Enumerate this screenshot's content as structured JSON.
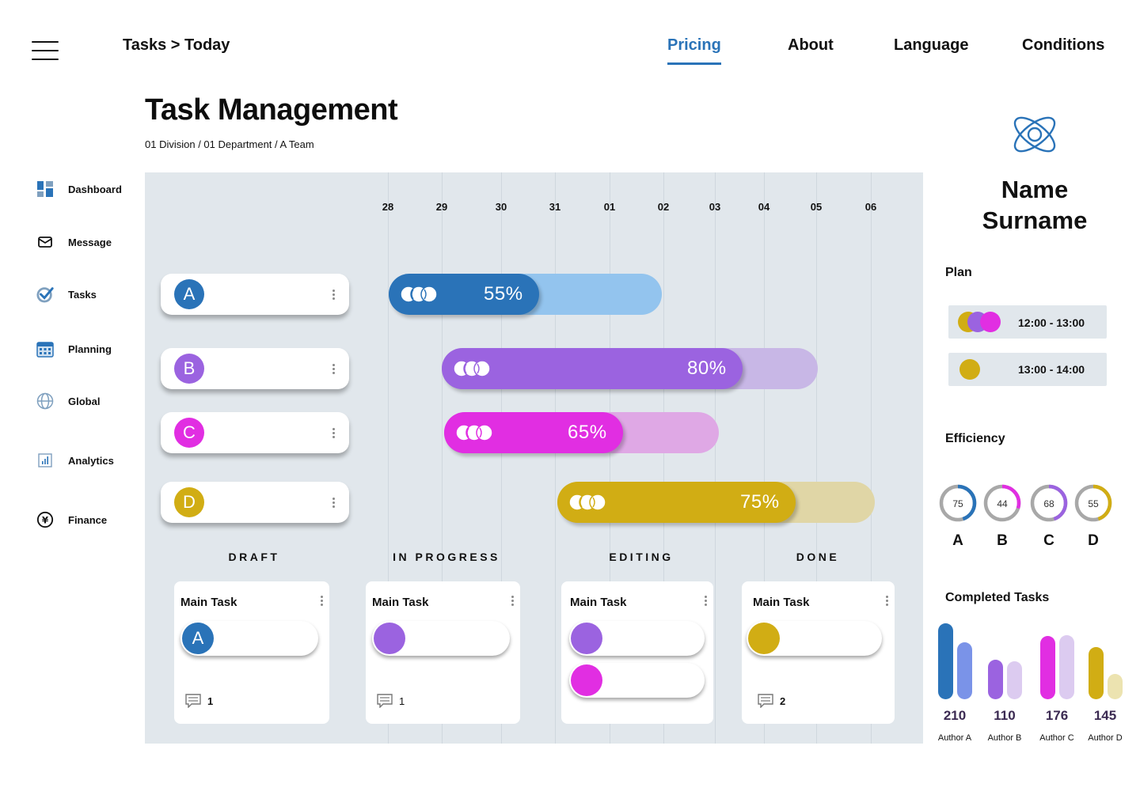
{
  "nav": {
    "breadcrumb": "Tasks > Today",
    "links": [
      "Pricing",
      "About",
      "Language",
      "Conditions"
    ],
    "active": "Pricing",
    "accent": "#2a73b8"
  },
  "page": {
    "title": "Task Management",
    "subtitle": "01 Division / 01 Department / A Team"
  },
  "sidebar": {
    "items": [
      {
        "label": "Dashboard",
        "icon": "dashboard-icon"
      },
      {
        "label": "Message",
        "icon": "envelope-icon"
      },
      {
        "label": "Tasks",
        "icon": "check-circle-icon"
      },
      {
        "label": "Planning",
        "icon": "calendar-icon"
      },
      {
        "label": "Global",
        "icon": "globe-icon"
      },
      {
        "label": "Analytics",
        "icon": "bar-chart-icon"
      },
      {
        "label": "Finance",
        "icon": "yen-coin-icon"
      }
    ]
  },
  "timeline": {
    "dates": [
      "28",
      "29",
      "30",
      "31",
      "01",
      "02",
      "03",
      "04",
      "05",
      "06"
    ],
    "rows": [
      {
        "letter": "A",
        "color": "#2a73b8",
        "light": "#93c4ee",
        "percent": "55%",
        "progress": 0.55
      },
      {
        "letter": "B",
        "color": "#9b63e0",
        "light": "#c8b7e6",
        "percent": "80%",
        "progress": 0.8
      },
      {
        "letter": "C",
        "color": "#e12ee2",
        "light": "#dfa8e5",
        "percent": "65%",
        "progress": 0.65
      },
      {
        "letter": "D",
        "color": "#d1ad14",
        "light": "#e0d6a6",
        "percent": "75%",
        "progress": 0.75
      }
    ]
  },
  "board": {
    "columns": [
      {
        "status": "DRAFT",
        "card_title": "Main Task",
        "comments": "1",
        "avatars": [
          {
            "letter": "A",
            "color": "#2a73b8"
          }
        ]
      },
      {
        "status": "IN PROGRESS",
        "card_title": "Main Task",
        "comments": "1",
        "avatars": [
          {
            "letter": "",
            "color": "#9b63e0"
          }
        ]
      },
      {
        "status": "EDITING",
        "card_title": "Main Task",
        "comments": "",
        "avatars": [
          {
            "letter": "",
            "color": "#9b63e0"
          },
          {
            "letter": "",
            "color": "#e12ee2"
          }
        ]
      },
      {
        "status": "DONE",
        "card_title": "Main Task",
        "comments": "2",
        "avatars": [
          {
            "letter": "",
            "color": "#d1ad14"
          }
        ]
      }
    ]
  },
  "profile": {
    "name": "Name Surname",
    "name_line1": "Name",
    "name_line2": "Surname"
  },
  "plan": {
    "heading": "Plan",
    "slots": [
      {
        "time": "12:00 - 13:00",
        "colors": [
          "#d1ad14",
          "#9b63e0",
          "#e12ee2"
        ]
      },
      {
        "time": "13:00 - 14:00",
        "colors": [
          "#d1ad14"
        ]
      }
    ]
  },
  "efficiency": {
    "heading": "Efficiency",
    "items": [
      {
        "letter": "A",
        "value": "75",
        "pct": 0.45,
        "color": "#2a73b8"
      },
      {
        "letter": "B",
        "value": "44",
        "pct": 0.3,
        "color": "#e12ee2"
      },
      {
        "letter": "C",
        "value": "68",
        "pct": 0.45,
        "color": "#9b63e0"
      },
      {
        "letter": "D",
        "value": "55",
        "pct": 0.45,
        "color": "#d1ad14"
      }
    ]
  },
  "completed": {
    "heading": "Completed Tasks",
    "chart_data": {
      "type": "bar",
      "categories": [
        "Author A",
        "Author B",
        "Author C",
        "Author D"
      ],
      "values": [
        210,
        110,
        176,
        145
      ],
      "colors": [
        [
          "#2a73b8",
          "#7a93e8"
        ],
        [
          "#9b63e0",
          "#dccbf0"
        ],
        [
          "#e12ee2",
          "#dccbf0"
        ],
        [
          "#d1ad14",
          "#ece3b0"
        ]
      ]
    }
  }
}
